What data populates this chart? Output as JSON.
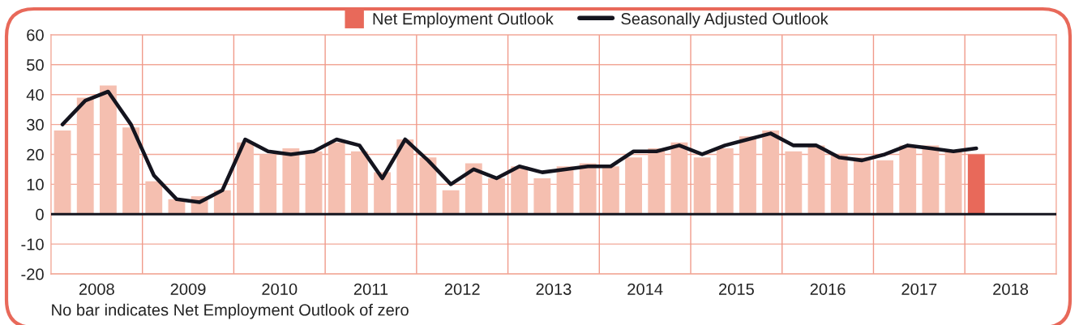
{
  "chart_data": {
    "type": "bar",
    "x": [
      2008.125,
      2008.375,
      2008.625,
      2008.875,
      2009.125,
      2009.375,
      2009.625,
      2009.875,
      2010.125,
      2010.375,
      2010.625,
      2010.875,
      2011.125,
      2011.375,
      2011.625,
      2011.875,
      2012.125,
      2012.375,
      2012.625,
      2012.875,
      2013.125,
      2013.375,
      2013.625,
      2013.875,
      2014.125,
      2014.375,
      2014.625,
      2014.875,
      2015.125,
      2015.375,
      2015.625,
      2015.875,
      2016.125,
      2016.375,
      2016.625,
      2016.875,
      2017.125,
      2017.375,
      2017.625,
      2017.875,
      2018.125
    ],
    "series": [
      {
        "name": "Net Employment Outlook",
        "color": "#e8695a",
        "values": [
          null,
          null,
          null,
          null,
          null,
          null,
          null,
          null,
          null,
          null,
          null,
          null,
          null,
          null,
          null,
          null,
          null,
          null,
          null,
          null,
          null,
          null,
          null,
          null,
          null,
          null,
          null,
          null,
          null,
          null,
          null,
          null,
          null,
          null,
          null,
          null,
          null,
          null,
          null,
          null,
          20
        ]
      },
      {
        "color": "#f5bfb0",
        "values": [
          28,
          39,
          43,
          29,
          11,
          5,
          6,
          8,
          24,
          20,
          22,
          21,
          24,
          21,
          14,
          25,
          19,
          8,
          17,
          12,
          16,
          12,
          16,
          17,
          16,
          19,
          22,
          24,
          19,
          22,
          26,
          28,
          21,
          23,
          20,
          19,
          18,
          23,
          23,
          21,
          null
        ]
      },
      {
        "name": "Seasonally Adjusted Outlook",
        "type": "line",
        "color": "#14141e",
        "values": [
          30,
          38,
          41,
          30,
          13,
          5,
          4,
          8,
          25,
          21,
          20,
          21,
          25,
          23,
          12,
          25,
          18,
          10,
          15,
          12,
          16,
          14,
          15,
          16,
          16,
          21,
          21,
          23,
          20,
          23,
          25,
          27,
          23,
          23,
          19,
          18,
          20,
          23,
          22,
          21,
          22
        ]
      }
    ],
    "xlim": [
      2008,
      2019
    ],
    "xticks": [
      {
        "value": 2008.5,
        "label": "2008"
      },
      {
        "value": 2009.5,
        "label": "2009"
      },
      {
        "value": 2010.5,
        "label": "2010"
      },
      {
        "value": 2011.5,
        "label": "2011"
      },
      {
        "value": 2012.5,
        "label": "2012"
      },
      {
        "value": 2013.5,
        "label": "2013"
      },
      {
        "value": 2014.5,
        "label": "2014"
      },
      {
        "value": 2015.5,
        "label": "2015"
      },
      {
        "value": 2016.5,
        "label": "2016"
      },
      {
        "value": 2017.5,
        "label": "2017"
      },
      {
        "value": 2018.5,
        "label": "2018"
      }
    ],
    "ylim": [
      -20,
      60
    ],
    "yticks": [
      -20,
      -10,
      0,
      10,
      20,
      30,
      40,
      50,
      60
    ],
    "grid": "y",
    "ref_lines": [
      {
        "axis": "y",
        "value": 0,
        "color": "#14141e"
      },
      {
        "axis": "x",
        "value": 2009,
        "color": "#f09a8a"
      },
      {
        "axis": "x",
        "value": 2010,
        "color": "#f09a8a"
      },
      {
        "axis": "x",
        "value": 2011,
        "color": "#f09a8a"
      },
      {
        "axis": "x",
        "value": 2012,
        "color": "#f09a8a"
      },
      {
        "axis": "x",
        "value": 2013,
        "color": "#f09a8a"
      },
      {
        "axis": "x",
        "value": 2014,
        "color": "#f09a8a"
      },
      {
        "axis": "x",
        "value": 2015,
        "color": "#f09a8a"
      },
      {
        "axis": "x",
        "value": 2016,
        "color": "#f09a8a"
      },
      {
        "axis": "x",
        "value": 2017,
        "color": "#f09a8a"
      },
      {
        "axis": "x",
        "value": 2018,
        "color": "#f09a8a"
      }
    ],
    "legend": "top",
    "marker": "none",
    "line_style": "solid",
    "annotations": [
      "No bar indicates Net Employment Outlook of zero"
    ]
  }
}
